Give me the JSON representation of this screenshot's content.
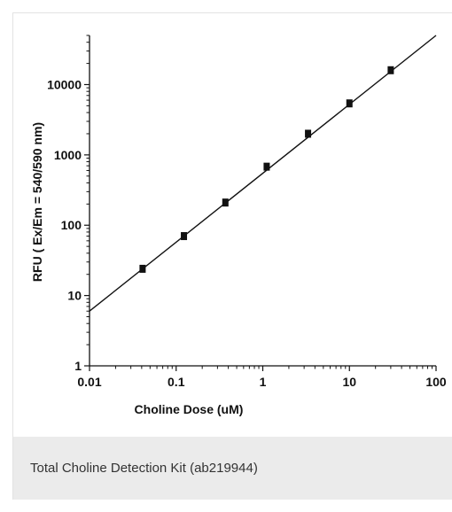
{
  "caption": "Total Choline Detection Kit (ab219944)",
  "chart_data": {
    "type": "scatter",
    "title": "",
    "xlabel": "Choline Dose (uM)",
    "ylabel": "RFU ( Ex/Em = 540/590 nm)",
    "x_scale": "log",
    "y_scale": "log",
    "xlim": [
      0.01,
      100
    ],
    "ylim": [
      1,
      50000
    ],
    "x_ticks": [
      "0.01",
      "0.1",
      "1",
      "10",
      "100"
    ],
    "y_ticks": [
      "1",
      "10",
      "100",
      "1000",
      "10000"
    ],
    "grid": false,
    "legend": "none",
    "series": [
      {
        "x": [
          0.041,
          0.123,
          0.37,
          1.11,
          3.33,
          10,
          30
        ],
        "y": [
          24,
          70,
          210,
          680,
          2000,
          5400,
          16000
        ]
      }
    ],
    "fit_line": {
      "x": [
        0.01,
        100
      ],
      "y": [
        6,
        50000
      ]
    },
    "colors": {
      "marker": "#111111",
      "line": "#111111",
      "axis": "#111111"
    }
  }
}
